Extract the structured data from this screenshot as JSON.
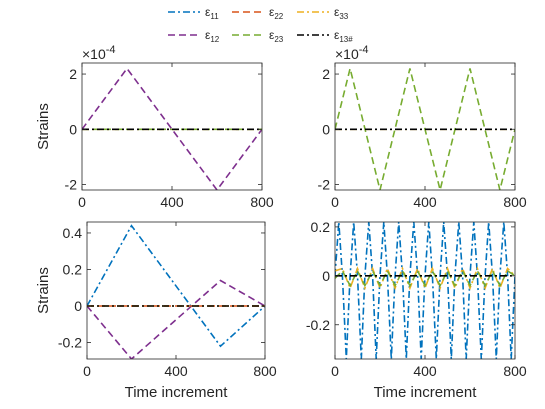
{
  "legend": [
    {
      "key": "e11",
      "sub": "11",
      "color": "#0072BD",
      "dash": "7,3,2,3"
    },
    {
      "key": "e22",
      "sub": "22",
      "color": "#D95319",
      "dash": "7,4"
    },
    {
      "key": "e33",
      "sub": "33",
      "color": "#EDB120",
      "dash": "7,3,2,3"
    },
    {
      "key": "e12",
      "sub": "12",
      "color": "#7E2F8E",
      "dash": "7,4"
    },
    {
      "key": "e23",
      "sub": "23",
      "color": "#77AC30",
      "dash": "7,4"
    },
    {
      "key": "e13",
      "sub": "13#",
      "color": "#000000",
      "dash": "7,3,2,3"
    }
  ],
  "legend_symbol": "ε",
  "chart_data": [
    {
      "type": "line",
      "panel": "top-left",
      "ylabel": "Strains",
      "xlabel": "",
      "exponent_label": "×10",
      "exponent_power": "-4",
      "xlim": [
        0,
        800
      ],
      "ylim": [
        -2.2,
        2.4
      ],
      "xticks": [
        "0",
        "400",
        "800"
      ],
      "yticks": [
        {
          "v": 2,
          "t": "2"
        },
        {
          "v": 0,
          "t": "0"
        },
        {
          "v": -2,
          "t": "-2"
        }
      ],
      "series": [
        {
          "key": "e12",
          "x": [
            0,
            200,
            600,
            800
          ],
          "y": [
            0,
            2.2,
            -2.2,
            0
          ]
        },
        {
          "key": "e23",
          "x": [
            0,
            800
          ],
          "y": [
            0,
            0
          ]
        },
        {
          "key": "e33",
          "x": [
            0,
            800
          ],
          "y": [
            0,
            0
          ]
        },
        {
          "key": "e13",
          "x": [
            0,
            800
          ],
          "y": [
            0,
            0
          ]
        }
      ]
    },
    {
      "type": "line",
      "panel": "top-right",
      "ylabel": "",
      "xlabel": "",
      "exponent_label": "×10",
      "exponent_power": "-4",
      "xlim": [
        0,
        800
      ],
      "ylim": [
        -2.2,
        2.4
      ],
      "xticks": [
        "0",
        "400",
        "800"
      ],
      "yticks": [
        {
          "v": 2,
          "t": "2"
        },
        {
          "v": 0,
          "t": "0"
        },
        {
          "v": -2,
          "t": "-2"
        }
      ],
      "series": [
        {
          "key": "e23",
          "x": [
            0,
            67,
            200,
            333,
            467,
            600,
            733,
            800
          ],
          "y": [
            0,
            2.2,
            -2.2,
            2.2,
            -2.2,
            2.2,
            -2.2,
            0
          ]
        },
        {
          "key": "e33",
          "x": [
            0,
            800
          ],
          "y": [
            0,
            0
          ]
        },
        {
          "key": "e13",
          "x": [
            0,
            800
          ],
          "y": [
            0,
            0
          ]
        }
      ]
    },
    {
      "type": "line",
      "panel": "bottom-left",
      "ylabel": "Strains",
      "xlabel": "Time increment",
      "xlim": [
        0,
        800
      ],
      "ylim": [
        -0.29,
        0.46
      ],
      "xticks": [
        "0",
        "400",
        "800"
      ],
      "yticks": [
        {
          "v": 0.4,
          "t": "0.4"
        },
        {
          "v": 0.2,
          "t": "0.2"
        },
        {
          "v": 0,
          "t": "0"
        },
        {
          "v": -0.2,
          "t": "-0.2"
        }
      ],
      "series": [
        {
          "key": "e11",
          "x": [
            0,
            200,
            600,
            800
          ],
          "y": [
            0,
            0.44,
            -0.22,
            0
          ]
        },
        {
          "key": "e12",
          "x": [
            0,
            200,
            600,
            800
          ],
          "y": [
            0,
            -0.29,
            0.14,
            0
          ]
        },
        {
          "key": "e22",
          "x": [
            0,
            800
          ],
          "y": [
            0,
            0
          ]
        },
        {
          "key": "e33",
          "x": [
            0,
            800
          ],
          "y": [
            0,
            0
          ]
        },
        {
          "key": "e13",
          "x": [
            0,
            800
          ],
          "y": [
            0,
            0
          ]
        }
      ]
    },
    {
      "type": "line",
      "panel": "bottom-right",
      "ylabel": "",
      "xlabel": "Time increment",
      "xlim": [
        0,
        800
      ],
      "ylim": [
        -0.34,
        0.22
      ],
      "xticks": [
        "0",
        "400",
        "800"
      ],
      "yticks": [
        {
          "v": 0.2,
          "t": "0.2"
        },
        {
          "v": 0,
          "t": "0"
        },
        {
          "v": -0.2,
          "t": "-0.2"
        }
      ],
      "series": [
        {
          "key": "e11",
          "x": [
            0,
            17,
            33,
            50,
            67,
            83,
            100,
            117,
            133,
            150,
            167,
            183,
            200,
            217,
            233,
            250,
            267,
            283,
            300,
            317,
            333,
            350,
            367,
            383,
            400,
            417,
            433,
            450,
            467,
            483,
            500,
            517,
            533,
            550,
            567,
            583,
            600,
            617,
            633,
            650,
            667,
            683,
            700,
            717,
            733,
            750,
            767,
            783,
            800
          ],
          "y": [
            0,
            0.22,
            0,
            -0.34,
            0,
            0.22,
            0,
            -0.34,
            0,
            0.22,
            0,
            -0.34,
            0,
            0.22,
            0,
            -0.34,
            0,
            0.22,
            0,
            -0.34,
            0,
            0.22,
            0,
            -0.34,
            0,
            0.22,
            0,
            -0.34,
            0,
            0.22,
            0,
            -0.34,
            0,
            0.22,
            0,
            -0.34,
            0,
            0.22,
            0,
            -0.34,
            0,
            0.22,
            0,
            -0.34,
            0,
            0.22,
            0,
            -0.34,
            0
          ]
        },
        {
          "key": "e33",
          "x": [
            0,
            33,
            67,
            100,
            133,
            167,
            200,
            233,
            267,
            300,
            333,
            367,
            400,
            433,
            467,
            500,
            533,
            567,
            600,
            633,
            667,
            700,
            733,
            767,
            800
          ],
          "y": [
            0.02,
            0.03,
            -0.05,
            0.03,
            -0.05,
            0.03,
            -0.05,
            0.03,
            -0.05,
            0.03,
            -0.05,
            0.03,
            -0.05,
            0.03,
            -0.05,
            0.03,
            -0.05,
            0.03,
            -0.05,
            0.03,
            -0.05,
            0.03,
            -0.05,
            0.03,
            0
          ]
        },
        {
          "key": "e23",
          "x": [
            0,
            33,
            67,
            100,
            133,
            167,
            200,
            233,
            267,
            300,
            333,
            367,
            400,
            433,
            467,
            500,
            533,
            567,
            600,
            633,
            667,
            700,
            733,
            767,
            800
          ],
          "y": [
            -0.01,
            0.02,
            -0.04,
            0.02,
            -0.04,
            0.02,
            -0.04,
            0.02,
            -0.04,
            0.02,
            -0.04,
            0.02,
            -0.04,
            0.02,
            -0.04,
            0.02,
            -0.04,
            0.02,
            -0.04,
            0.02,
            -0.04,
            0.02,
            -0.04,
            0.02,
            0
          ]
        },
        {
          "key": "e13",
          "x": [
            0,
            800
          ],
          "y": [
            0,
            0
          ]
        }
      ]
    }
  ]
}
